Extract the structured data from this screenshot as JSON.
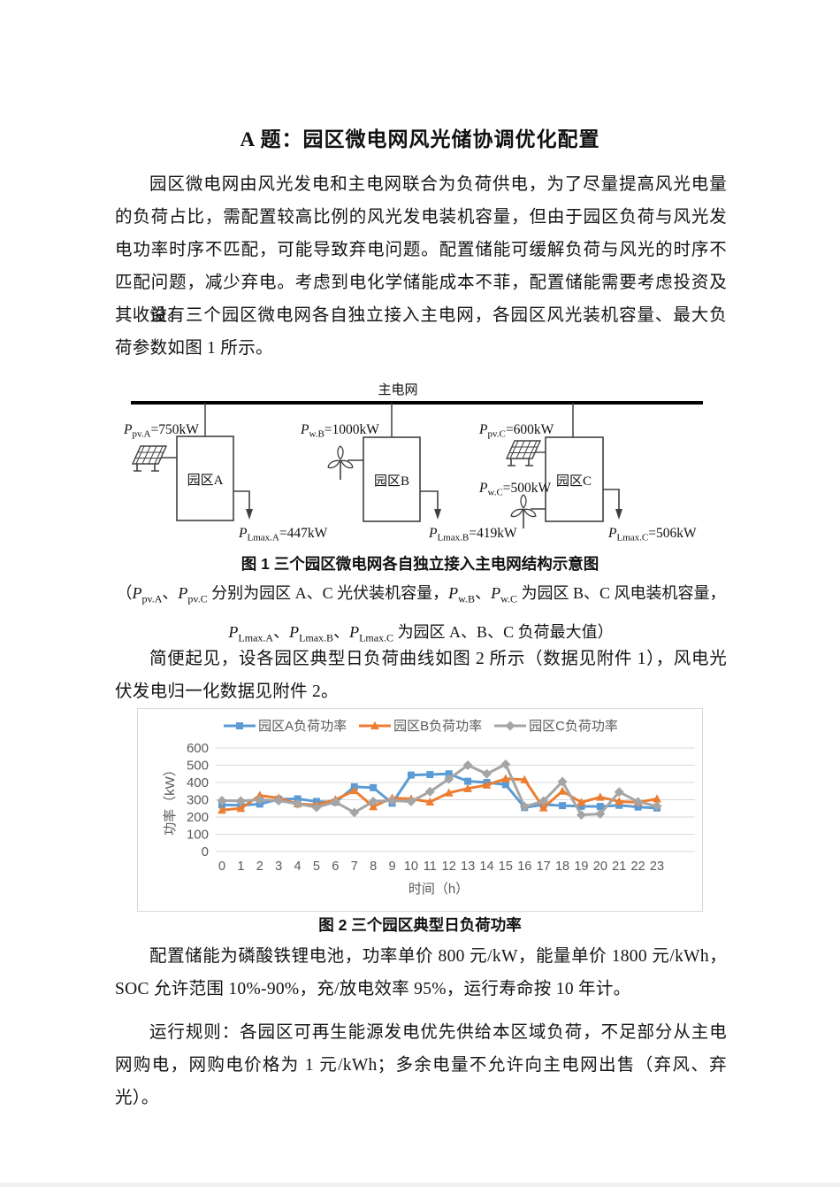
{
  "doc": {
    "title": "A 题：园区微电网风光储协调优化配置",
    "paragraphs": {
      "p1": "园区微电网由风光发电和主电网联合为负荷供电，为了尽量提高风光电量的负荷占比，需配置较高比例的风光发电装机容量，但由于园区负荷与风光发电功率时序不匹配，可能导致弃电问题。配置储能可缓解负荷与风光的时序不匹配问题，减少弃电。考虑到电化学储能成本不菲，配置储能需要考虑投资及其收益。",
      "p2": "设有三个园区微电网各自独立接入主电网，各园区风光装机容量、最大负荷参数如图 1 所示。",
      "p3": "简便起见，设各园区典型日负荷曲线如图 2 所示（数据见附件 1），风电光伏发电归一化数据见附件 2。",
      "p4": "配置储能为磷酸铁锂电池，功率单价 800 元/kW，能量单价 1800 元/kWh，SOC 允许范围 10%-90%，充/放电效率 95%，运行寿命按 10 年计。",
      "p5": "运行规则：各园区可再生能源发电优先供给本区域负荷，不足部分从主电网购电，网购电价格为 1 元/kWh；多余电量不允许向主电网出售（弃风、弃光）。"
    }
  },
  "figure1": {
    "caption": "图 1 三个园区微电网各自独立接入主电网结构示意图",
    "grid_label": "主电网",
    "parks": [
      {
        "name": "园区A"
      },
      {
        "name": "园区B"
      },
      {
        "name": "园区C"
      }
    ],
    "labels": {
      "pvA": {
        "pre": "P",
        "sub": "pv.A",
        "post": "=750kW"
      },
      "wB": {
        "pre": "P",
        "sub": "w.B",
        "post": "=1000kW"
      },
      "pvC": {
        "pre": "P",
        "sub": "pv.C",
        "post": "=600kW"
      },
      "wC": {
        "pre": "P",
        "sub": "w.C",
        "post": "=500kW"
      },
      "lA": {
        "pre": "P",
        "sub": "Lmax.A",
        "post": "=447kW"
      },
      "lB": {
        "pre": "P",
        "sub": "Lmax.B",
        "post": "=419kW"
      },
      "lC": {
        "pre": "P",
        "sub": "Lmax.C",
        "post": "=506kW"
      }
    },
    "note_line1": [
      {
        "t": "（"
      },
      {
        "i": "P"
      },
      {
        "s": "pv.A"
      },
      {
        "t": "、"
      },
      {
        "i": "P"
      },
      {
        "s": "pv.C"
      },
      {
        "t": " 分别为园区 A、C 光伏装机容量，"
      },
      {
        "i": "P"
      },
      {
        "s": "w.B"
      },
      {
        "t": "、"
      },
      {
        "i": "P"
      },
      {
        "s": "w.C"
      },
      {
        "t": " 为园区 B、C 风电装机容量，"
      }
    ],
    "note_line2": [
      {
        "i": "P"
      },
      {
        "s": "Lmax.A"
      },
      {
        "t": "、"
      },
      {
        "i": "P"
      },
      {
        "s": "Lmax.B"
      },
      {
        "t": "、"
      },
      {
        "i": "P"
      },
      {
        "s": "Lmax.C"
      },
      {
        "t": " 为园区 A、B、C 负荷最大值）"
      }
    ]
  },
  "figure2": {
    "caption": "图 2 三个园区典型日负荷功率",
    "ylabel": "功率（kW）",
    "xlabel": "时间（h）"
  },
  "chart_data": {
    "type": "line",
    "x": [
      0,
      1,
      2,
      3,
      4,
      5,
      6,
      7,
      8,
      9,
      10,
      11,
      12,
      13,
      14,
      15,
      16,
      17,
      18,
      19,
      20,
      21,
      22,
      23
    ],
    "series": [
      {
        "name": "园区A负荷功率",
        "color": "#5B9BD5",
        "marker": "square",
        "values": [
          270,
          268,
          275,
          303,
          305,
          290,
          286,
          375,
          370,
          280,
          443,
          446,
          450,
          407,
          400,
          388,
          255,
          272,
          266,
          262,
          261,
          268,
          258,
          252
        ]
      },
      {
        "name": "园区B负荷功率",
        "color": "#ED7D31",
        "marker": "triangle",
        "values": [
          240,
          250,
          325,
          310,
          276,
          270,
          300,
          353,
          260,
          310,
          305,
          287,
          340,
          365,
          385,
          422,
          416,
          253,
          350,
          285,
          315,
          290,
          285,
          305
        ]
      },
      {
        "name": "园区C负荷功率",
        "color": "#A5A5A5",
        "marker": "diamond",
        "values": [
          295,
          293,
          300,
          295,
          276,
          256,
          287,
          226,
          290,
          295,
          290,
          347,
          420,
          500,
          450,
          505,
          260,
          292,
          405,
          212,
          218,
          345,
          288,
          263
        ]
      }
    ],
    "ylim": [
      0,
      600
    ],
    "ytick_step": 100,
    "yticks": [
      0,
      100,
      200,
      300,
      400,
      500,
      600
    ],
    "grid": true,
    "legend_position": "top",
    "grid_color": "#d9d9d9",
    "axis_text_color": "#595959"
  }
}
